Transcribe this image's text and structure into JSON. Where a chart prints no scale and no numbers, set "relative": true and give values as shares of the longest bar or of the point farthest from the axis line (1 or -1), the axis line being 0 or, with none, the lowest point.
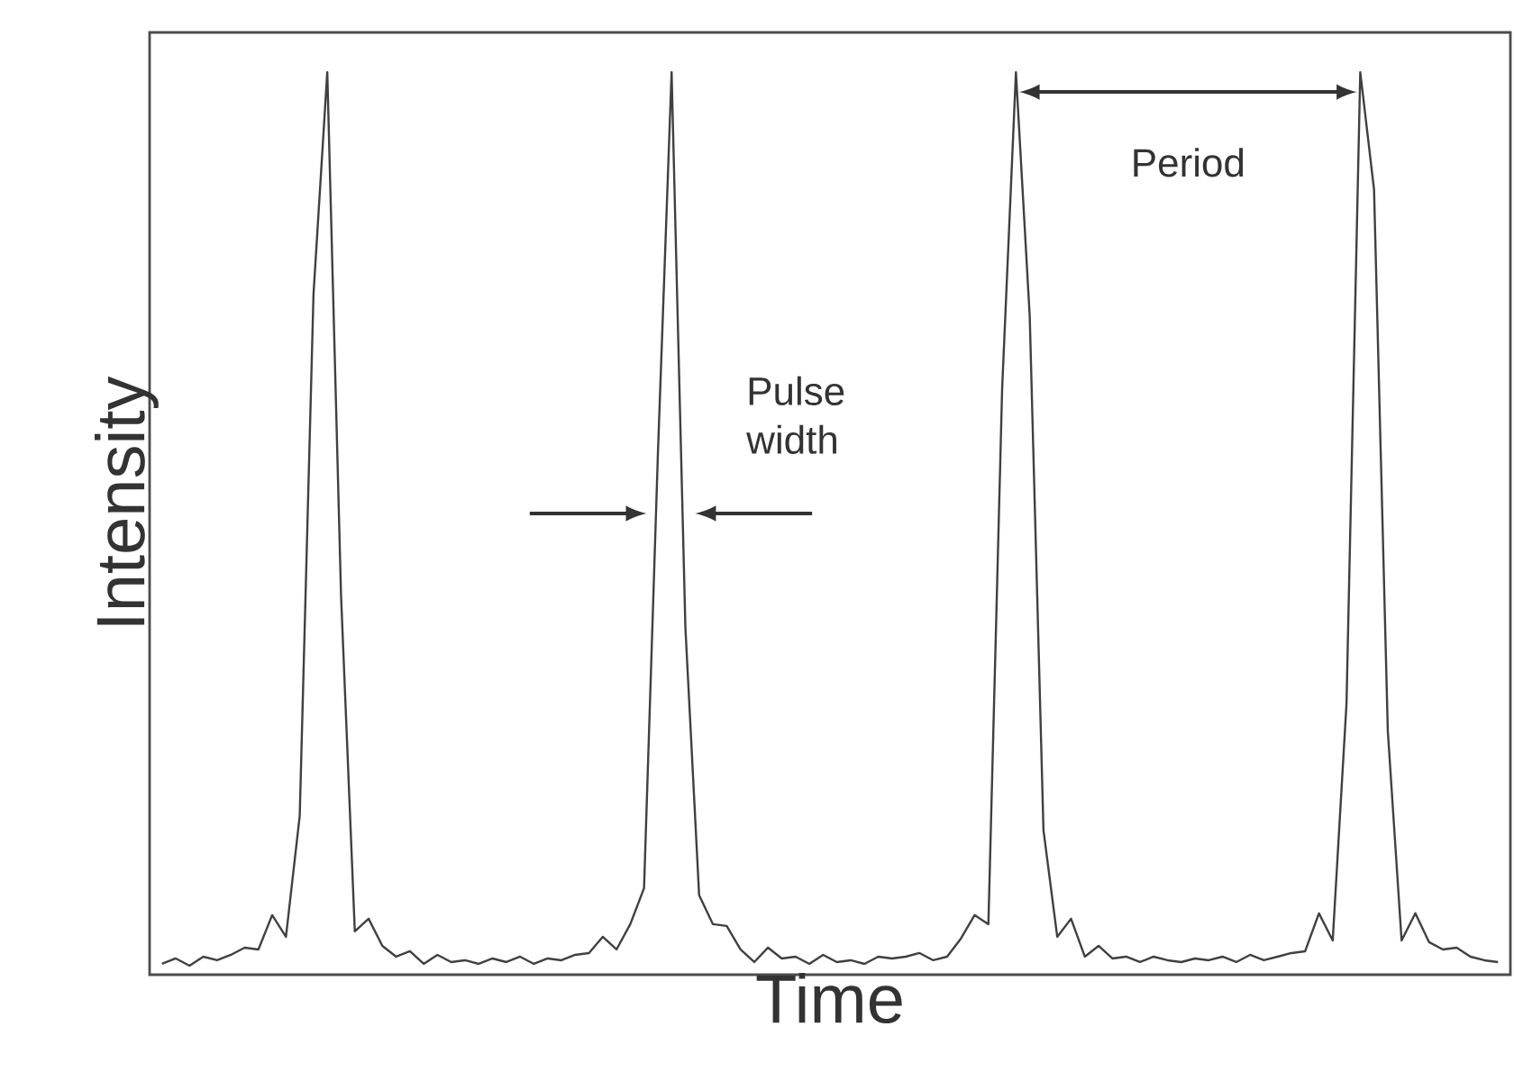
{
  "chart_data": {
    "type": "line",
    "relative": true,
    "xlabel": "Time",
    "ylabel": "Intensity",
    "color": "#404040",
    "categories": [
      null,
      null,
      null,
      null,
      null,
      null,
      null,
      null,
      null,
      null,
      null,
      null,
      null,
      null,
      null,
      null,
      null,
      null,
      null,
      null,
      null,
      null,
      null,
      null,
      null,
      null,
      null,
      null,
      null,
      null,
      null,
      null,
      null,
      null,
      null,
      null,
      null,
      null,
      null,
      null,
      null,
      null,
      null,
      null,
      null,
      null,
      null,
      null,
      null,
      null,
      null,
      null,
      null,
      null,
      null,
      null,
      null,
      null,
      null,
      null,
      null,
      null,
      null,
      null,
      null,
      null,
      null,
      null,
      null,
      null,
      null,
      null,
      null,
      null,
      null,
      null,
      null,
      null,
      null,
      null,
      null,
      null,
      null,
      null,
      null,
      null,
      null,
      null,
      null,
      null,
      null,
      null,
      null,
      null,
      null,
      null,
      null,
      null
    ],
    "values": [
      0.012,
      0.018,
      0.01,
      0.02,
      0.016,
      0.022,
      0.03,
      0.028,
      0.066,
      0.042,
      0.176,
      0.754,
      1.0,
      0.42,
      0.048,
      0.062,
      0.032,
      0.02,
      0.026,
      0.012,
      0.022,
      0.014,
      0.016,
      0.012,
      0.018,
      0.014,
      0.02,
      0.012,
      0.018,
      0.016,
      0.022,
      0.024,
      0.042,
      0.028,
      0.056,
      0.096,
      0.575,
      1.0,
      0.385,
      0.088,
      0.056,
      0.054,
      0.028,
      0.014,
      0.03,
      0.018,
      0.02,
      0.012,
      0.022,
      0.014,
      0.016,
      0.012,
      0.02,
      0.018,
      0.02,
      0.024,
      0.016,
      0.02,
      0.04,
      0.066,
      0.056,
      0.65,
      1.0,
      0.73,
      0.16,
      0.042,
      0.062,
      0.02,
      0.032,
      0.018,
      0.02,
      0.014,
      0.02,
      0.016,
      0.014,
      0.018,
      0.016,
      0.02,
      0.014,
      0.022,
      0.016,
      0.02,
      0.024,
      0.026,
      0.068,
      0.038,
      0.3,
      1.0,
      0.87,
      0.27,
      0.038,
      0.068,
      0.036,
      0.028,
      0.03,
      0.02,
      0.016,
      0.014
    ],
    "annotations": [
      "Pulse width",
      "Period"
    ]
  }
}
